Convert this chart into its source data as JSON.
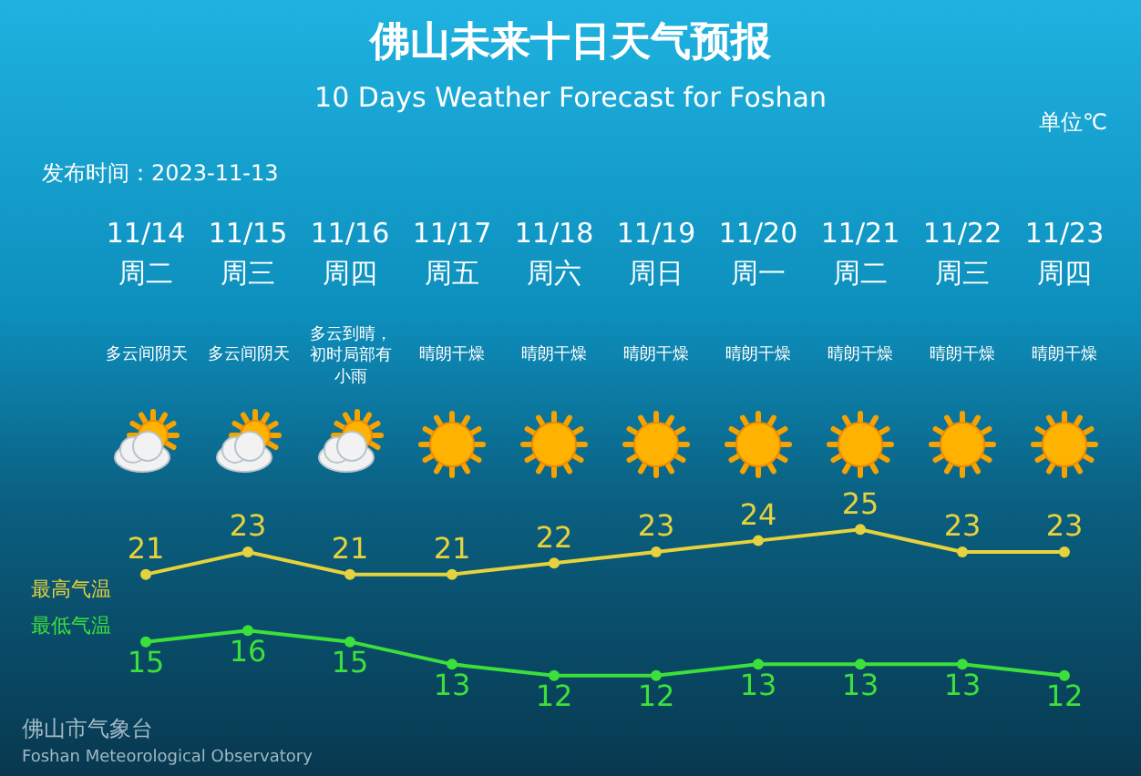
{
  "chart_data": {
    "type": "line",
    "title": "佛山未来十日天气预报",
    "subtitle": "10 Days Weather Forecast for Foshan",
    "categories": [
      "11/14",
      "11/15",
      "11/16",
      "11/17",
      "11/18",
      "11/19",
      "11/20",
      "11/21",
      "11/22",
      "11/23"
    ],
    "series": [
      {
        "name": "最高气温",
        "color": "#e6d23c",
        "values": [
          21,
          23,
          21,
          21,
          22,
          23,
          24,
          25,
          23,
          23
        ]
      },
      {
        "name": "最低气温",
        "color": "#3be03b",
        "values": [
          15,
          16,
          15,
          13,
          12,
          12,
          13,
          13,
          13,
          12
        ]
      }
    ],
    "annotations": [
      "单位℃",
      "发布时间：2023-11-13",
      "周二",
      "周三",
      "周四",
      "周五",
      "周六",
      "周日",
      "周一",
      "周二",
      "周三",
      "周四",
      "多云间阴天",
      "多云间阴天",
      "多云到晴，初时局部有小雨",
      "晴朗干燥",
      "晴朗干燥",
      "晴朗干燥",
      "晴朗干燥",
      "晴朗干燥",
      "晴朗干燥",
      "晴朗干燥",
      "佛山市气象台",
      "Foshan Meteorological Observatory"
    ],
    "data_labels": true,
    "legend": false,
    "grid": false,
    "marker": "circle",
    "line_style": "solid",
    "tick_labels": "x"
  }
}
